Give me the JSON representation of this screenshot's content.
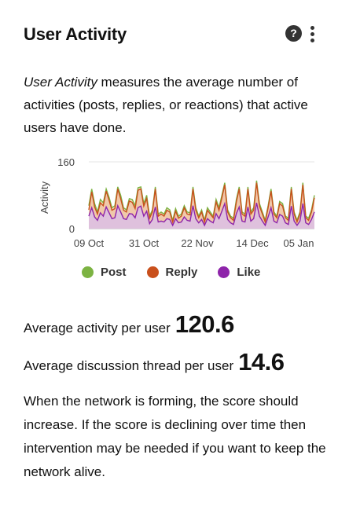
{
  "header": {
    "title": "User Activity",
    "help_icon": "question-circle-icon",
    "menu_icon": "kebab-menu-icon"
  },
  "description": {
    "italic": "User Activity",
    "rest": " measures the average number of activities (posts, replies, or reactions) that active users have done."
  },
  "chart_data": {
    "type": "area",
    "ylabel": "Activity",
    "ylim": [
      0,
      160
    ],
    "y_ticks": [
      "0",
      "160"
    ],
    "x_ticks": [
      "09 Oct",
      "31 Oct",
      "22 Nov",
      "14 Dec",
      "05 Jan"
    ],
    "series": [
      {
        "name": "Post",
        "color": "#7cb342",
        "values": [
          55,
          95,
          60,
          40,
          70,
          62,
          95,
          75,
          50,
          55,
          100,
          80,
          50,
          45,
          72,
          70,
          55,
          98,
          100,
          60,
          80,
          30,
          45,
          100,
          35,
          40,
          35,
          50,
          45,
          20,
          48,
          30,
          35,
          55,
          40,
          38,
          100,
          50,
          30,
          45,
          20,
          50,
          40,
          30,
          70,
          50,
          80,
          110,
          45,
          30,
          25,
          70,
          100,
          40,
          35,
          100,
          40,
          50,
          115,
          60,
          40,
          20,
          55,
          95,
          40,
          30,
          65,
          60,
          30,
          25,
          100,
          40,
          20,
          40,
          110,
          30,
          25,
          45,
          80
        ]
      },
      {
        "name": "Reply",
        "color": "#c9501c",
        "values": [
          45,
          88,
          52,
          35,
          62,
          55,
          90,
          68,
          44,
          48,
          95,
          72,
          44,
          40,
          66,
          63,
          48,
          92,
          95,
          54,
          72,
          25,
          40,
          95,
          30,
          35,
          30,
          44,
          40,
          16,
          42,
          25,
          30,
          50,
          35,
          33,
          95,
          44,
          26,
          40,
          16,
          44,
          35,
          26,
          64,
          44,
          74,
          105,
          40,
          26,
          20,
          64,
          95,
          35,
          30,
          95,
          35,
          44,
          110,
          54,
          35,
          16,
          50,
          90,
          35,
          26,
          60,
          54,
          26,
          20,
          95,
          35,
          16,
          35,
          105,
          26,
          20,
          40,
          74
        ]
      },
      {
        "name": "Like",
        "color": "#8e24aa",
        "values": [
          30,
          50,
          28,
          20,
          38,
          30,
          52,
          38,
          24,
          26,
          55,
          40,
          24,
          22,
          36,
          35,
          26,
          50,
          54,
          30,
          42,
          12,
          22,
          52,
          16,
          18,
          16,
          24,
          22,
          8,
          24,
          14,
          16,
          28,
          20,
          18,
          55,
          24,
          14,
          22,
          8,
          24,
          18,
          14,
          36,
          24,
          42,
          60,
          22,
          14,
          10,
          36,
          52,
          18,
          16,
          52,
          18,
          24,
          62,
          30,
          18,
          8,
          28,
          50,
          18,
          14,
          34,
          30,
          14,
          10,
          54,
          18,
          8,
          18,
          60,
          14,
          10,
          22,
          40
        ]
      }
    ]
  },
  "legend": [
    {
      "label": "Post",
      "color": "#7cb342"
    },
    {
      "label": "Reply",
      "color": "#c9501c"
    },
    {
      "label": "Like",
      "color": "#8e24aa"
    }
  ],
  "metrics": {
    "avg_activity_label": "Average activity per user",
    "avg_activity_value": "120.6",
    "avg_thread_label": "Average discussion thread per user",
    "avg_thread_value": "14.6"
  },
  "footer": "When the network is forming, the score should increase. If the score is declining over time then intervention may be needed if you want to keep the network alive."
}
